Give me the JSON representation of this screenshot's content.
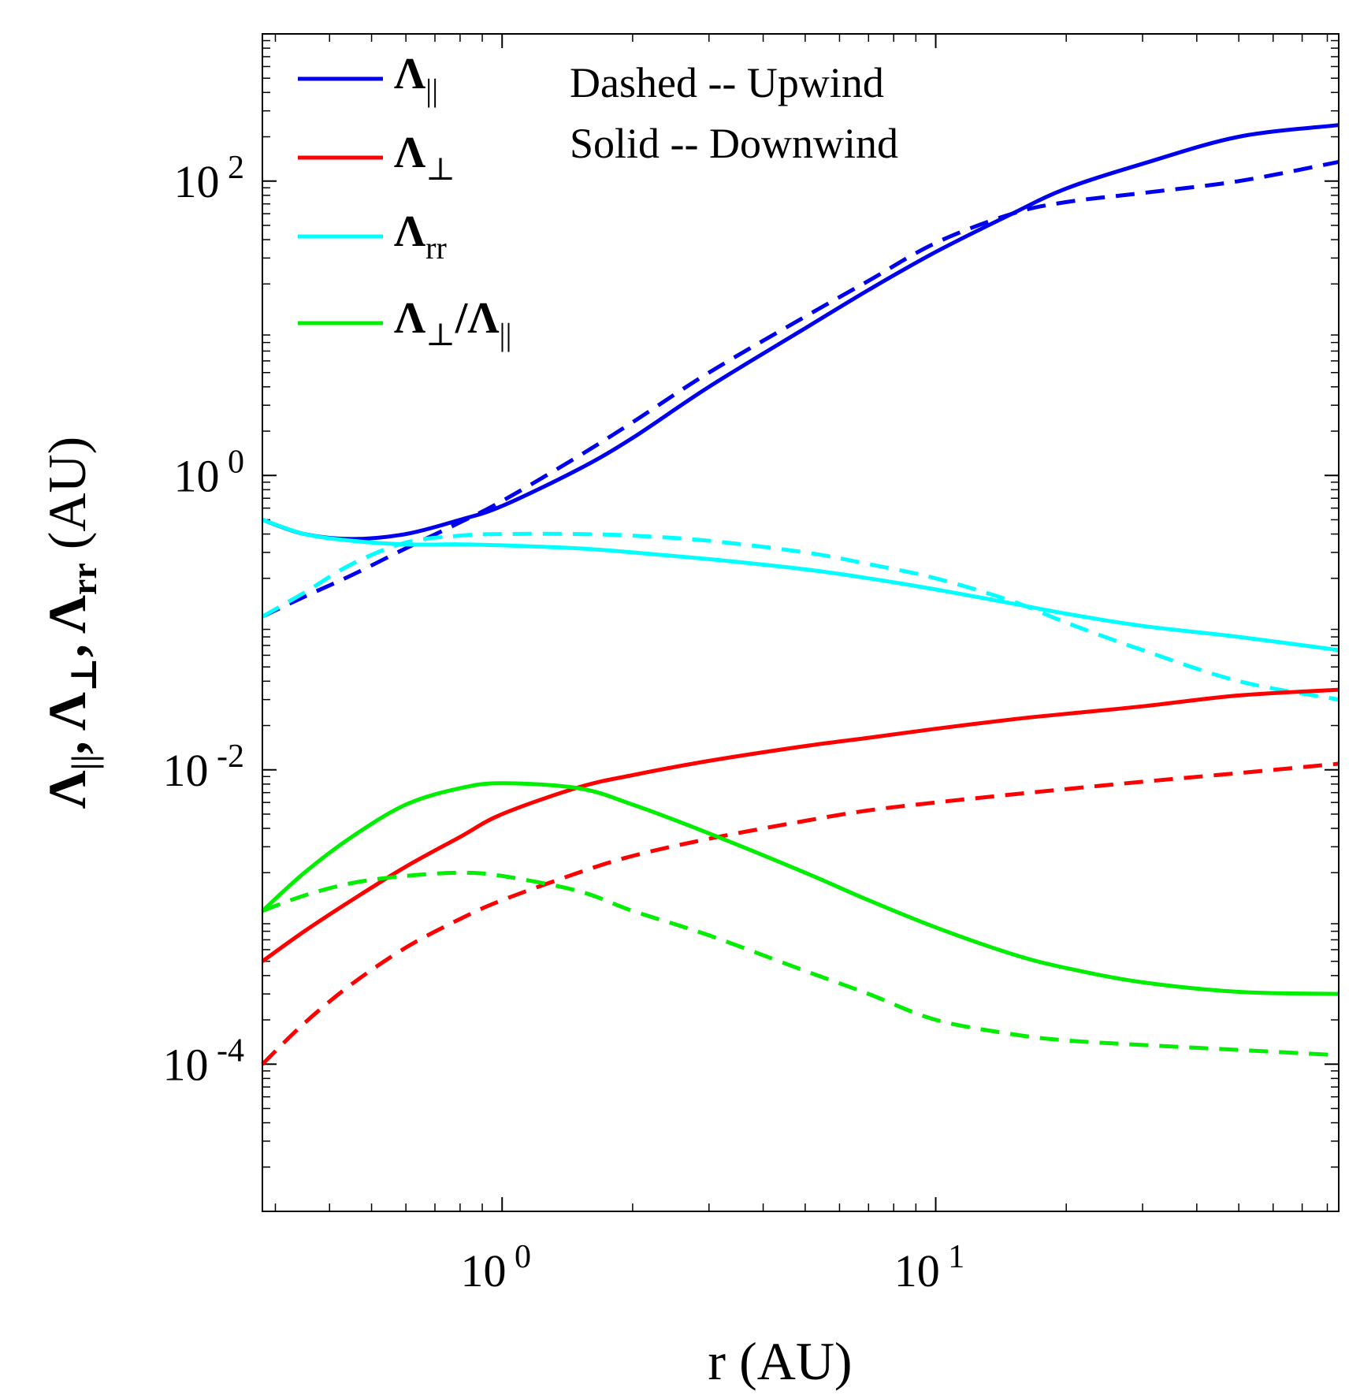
{
  "chart_data": {
    "type": "line",
    "xscale": "log",
    "yscale": "log",
    "xlim": [
      0.28,
      85
    ],
    "ylim": [
      1e-05,
      1000
    ],
    "xlabel": "r (AU)",
    "ylabel": "Λ||, Λ⊥, Λrr (AU)",
    "xticks": [
      {
        "value": 1,
        "base": "10",
        "exp": "0"
      },
      {
        "value": 10,
        "base": "10",
        "exp": "1"
      }
    ],
    "yticks": [
      {
        "value": 0.0001,
        "base": "10",
        "exp": "-4"
      },
      {
        "value": 0.01,
        "base": "10",
        "exp": "-2"
      },
      {
        "value": 1,
        "base": "10",
        "exp": "0"
      },
      {
        "value": 100,
        "base": "10",
        "exp": "2"
      }
    ],
    "annotations": [
      "Dashed -- Upwind",
      "Solid -- Downwind"
    ],
    "legend": {
      "placement": "top-left",
      "entries": [
        {
          "symbol": "Λ",
          "sub": "||",
          "color": "#0000ee"
        },
        {
          "symbol": "Λ",
          "sub": "⊥",
          "color": "#ff0000"
        },
        {
          "symbol": "Λ",
          "sub": "rr",
          "color": "#00ffff"
        },
        {
          "symbol": "Λ",
          "sub": "⊥",
          "tail": "/Λ",
          "tail_sub": "||",
          "color": "#00ee00"
        }
      ]
    },
    "series": [
      {
        "name": "Λ|| downwind",
        "color": "#0000ee",
        "style": "solid",
        "x": [
          0.28,
          0.35,
          0.45,
          0.6,
          0.8,
          1,
          1.5,
          2,
          3,
          5,
          7,
          10,
          15,
          20,
          30,
          50,
          85
        ],
        "y": [
          0.5,
          0.4,
          0.37,
          0.4,
          0.5,
          0.62,
          1.1,
          1.8,
          4,
          10,
          18.2,
          33,
          60,
          89,
          131,
          200,
          240
        ]
      },
      {
        "name": "Λ|| upwind",
        "color": "#0000ee",
        "style": "dashed",
        "x": [
          0.28,
          0.35,
          0.45,
          0.6,
          0.8,
          1,
          1.5,
          2,
          3,
          5,
          7,
          10,
          15,
          20,
          30,
          50,
          85
        ],
        "y": [
          0.11,
          0.15,
          0.21,
          0.32,
          0.48,
          0.67,
          1.35,
          2.3,
          5,
          12,
          21,
          38,
          60,
          72,
          83,
          100,
          135
        ]
      },
      {
        "name": "Λrr downwind",
        "color": "#00ffff",
        "style": "solid",
        "x": [
          0.28,
          0.35,
          0.45,
          0.6,
          0.8,
          1,
          1.5,
          2,
          3,
          5,
          7,
          10,
          15,
          20,
          30,
          50,
          85
        ],
        "y": [
          0.5,
          0.4,
          0.36,
          0.34,
          0.34,
          0.335,
          0.32,
          0.3,
          0.27,
          0.23,
          0.2,
          0.168,
          0.135,
          0.115,
          0.095,
          0.08,
          0.065
        ]
      },
      {
        "name": "Λrr upwind",
        "color": "#00ffff",
        "style": "dashed",
        "x": [
          0.28,
          0.35,
          0.45,
          0.6,
          0.8,
          1,
          1.5,
          2,
          3,
          5,
          7,
          10,
          15,
          20,
          30,
          50,
          85
        ],
        "y": [
          0.11,
          0.16,
          0.25,
          0.35,
          0.39,
          0.4,
          0.4,
          0.39,
          0.36,
          0.3,
          0.25,
          0.2,
          0.14,
          0.1,
          0.065,
          0.04,
          0.03
        ]
      },
      {
        "name": "Λ⊥ downwind",
        "color": "#ff0000",
        "style": "solid",
        "x": [
          0.28,
          0.35,
          0.45,
          0.6,
          0.8,
          1,
          1.5,
          2,
          3,
          5,
          7,
          10,
          15,
          20,
          30,
          50,
          85
        ],
        "y": [
          0.0005,
          0.0008,
          0.0013,
          0.0022,
          0.0035,
          0.005,
          0.0076,
          0.0092,
          0.0115,
          0.0145,
          0.0165,
          0.019,
          0.022,
          0.024,
          0.027,
          0.032,
          0.035
        ]
      },
      {
        "name": "Λ⊥ upwind",
        "color": "#ff0000",
        "style": "dashed",
        "x": [
          0.28,
          0.35,
          0.45,
          0.6,
          0.8,
          1,
          1.5,
          2,
          3,
          5,
          7,
          10,
          15,
          20,
          30,
          50,
          85
        ],
        "y": [
          0.0001,
          0.00019,
          0.00035,
          0.00062,
          0.00097,
          0.0013,
          0.002,
          0.0026,
          0.0034,
          0.0045,
          0.0053,
          0.006,
          0.0068,
          0.0074,
          0.0083,
          0.0095,
          0.011
        ]
      },
      {
        "name": "Λ⊥/Λ|| downwind",
        "color": "#00ee00",
        "style": "solid",
        "x": [
          0.28,
          0.35,
          0.45,
          0.6,
          0.8,
          1,
          1.5,
          2,
          3,
          5,
          7,
          10,
          15,
          20,
          30,
          50,
          85
        ],
        "y": [
          0.0011,
          0.002,
          0.0035,
          0.0058,
          0.0075,
          0.0081,
          0.0075,
          0.0058,
          0.0037,
          0.002,
          0.0013,
          0.00085,
          0.00056,
          0.00045,
          0.00036,
          0.00031,
          0.0003
        ]
      },
      {
        "name": "Λ⊥/Λ|| upwind",
        "color": "#00ee00",
        "style": "dashed",
        "x": [
          0.28,
          0.35,
          0.45,
          0.6,
          0.8,
          1,
          1.5,
          2,
          3,
          5,
          7,
          10,
          15,
          20,
          30,
          50,
          85
        ],
        "y": [
          0.0011,
          0.0014,
          0.0017,
          0.0019,
          0.002,
          0.0019,
          0.0015,
          0.0011,
          0.00075,
          0.00043,
          0.0003,
          0.0002,
          0.00016,
          0.000145,
          0.000135,
          0.000125,
          0.000115
        ]
      }
    ]
  }
}
